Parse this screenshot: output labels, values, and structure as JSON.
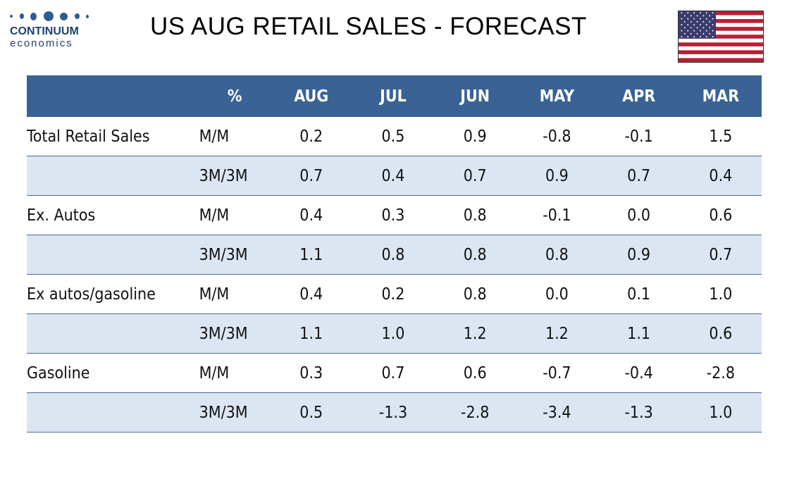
{
  "logo": {
    "name": "CONTINUUM",
    "sub": "economics"
  },
  "title": "US AUG RETAIL SALES - FORECAST",
  "flag_icon": "us-flag-icon",
  "colors": {
    "header_bg": "#396295",
    "alt_row_bg": "#dce6f2",
    "brand": "#1f3f6b"
  },
  "table": {
    "headers": [
      "",
      "%",
      "AUG",
      "JUL",
      "JUN",
      "MAY",
      "APR",
      "MAR"
    ],
    "rows": [
      {
        "label": "Total Retail Sales",
        "unit": "M/M",
        "values": [
          "0.2",
          "0.5",
          "0.9",
          "-0.8",
          "-0.1",
          "1.5"
        ]
      },
      {
        "label": "",
        "unit": "3M/3M",
        "values": [
          "0.7",
          "0.4",
          "0.7",
          "0.9",
          "0.7",
          "0.4"
        ]
      },
      {
        "label": "Ex. Autos",
        "unit": "M/M",
        "values": [
          "0.4",
          "0.3",
          "0.8",
          "-0.1",
          "0.0",
          "0.6"
        ]
      },
      {
        "label": "",
        "unit": "3M/3M",
        "values": [
          "1.1",
          "0.8",
          "0.8",
          "0.8",
          "0.9",
          "0.7"
        ]
      },
      {
        "label": "Ex autos/gasoline",
        "unit": "M/M",
        "values": [
          "0.4",
          "0.2",
          "0.8",
          "0.0",
          "0.1",
          "1.0"
        ]
      },
      {
        "label": "",
        "unit": "3M/3M",
        "values": [
          "1.1",
          "1.0",
          "1.2",
          "1.2",
          "1.1",
          "0.6"
        ]
      },
      {
        "label": "Gasoline",
        "unit": "M/M",
        "values": [
          "0.3",
          "0.7",
          "0.6",
          "-0.7",
          "-0.4",
          "-2.8"
        ]
      },
      {
        "label": "",
        "unit": "3M/3M",
        "values": [
          "0.5",
          "-1.3",
          "-2.8",
          "-3.4",
          "-1.3",
          "1.0"
        ]
      }
    ]
  }
}
